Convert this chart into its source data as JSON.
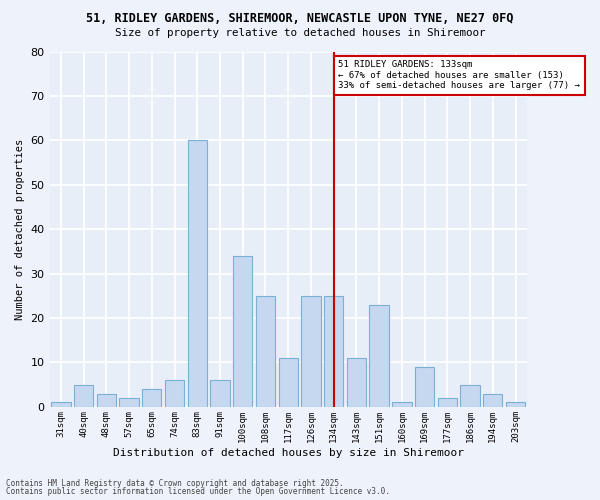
{
  "title1": "51, RIDLEY GARDENS, SHIREMOOR, NEWCASTLE UPON TYNE, NE27 0FQ",
  "title2": "Size of property relative to detached houses in Shiremoor",
  "xlabel": "Distribution of detached houses by size in Shiremoor",
  "ylabel": "Number of detached properties",
  "categories": [
    "31sqm",
    "40sqm",
    "48sqm",
    "57sqm",
    "65sqm",
    "74sqm",
    "83sqm",
    "91sqm",
    "100sqm",
    "108sqm",
    "117sqm",
    "126sqm",
    "134sqm",
    "143sqm",
    "151sqm",
    "160sqm",
    "169sqm",
    "177sqm",
    "186sqm",
    "194sqm",
    "203sqm"
  ],
  "values": [
    1,
    5,
    3,
    2,
    4,
    6,
    60,
    6,
    34,
    25,
    11,
    25,
    25,
    11,
    23,
    1,
    9,
    2,
    5,
    3,
    1
  ],
  "bar_color": "#c5d8f0",
  "bar_edge_color": "#7bafd4",
  "background_color": "#e8eef8",
  "fig_color": "#eef2fa",
  "grid_color": "#ffffff",
  "vline_x": 12,
  "vline_color": "#cc0000",
  "annotation_text": "51 RIDLEY GARDENS: 133sqm\n← 67% of detached houses are smaller (153)\n33% of semi-detached houses are larger (77) →",
  "annotation_box_color": "#cc0000",
  "ylim": [
    0,
    80
  ],
  "yticks": [
    0,
    10,
    20,
    30,
    40,
    50,
    60,
    70,
    80
  ],
  "footnote1": "Contains HM Land Registry data © Crown copyright and database right 2025.",
  "footnote2": "Contains public sector information licensed under the Open Government Licence v3.0."
}
